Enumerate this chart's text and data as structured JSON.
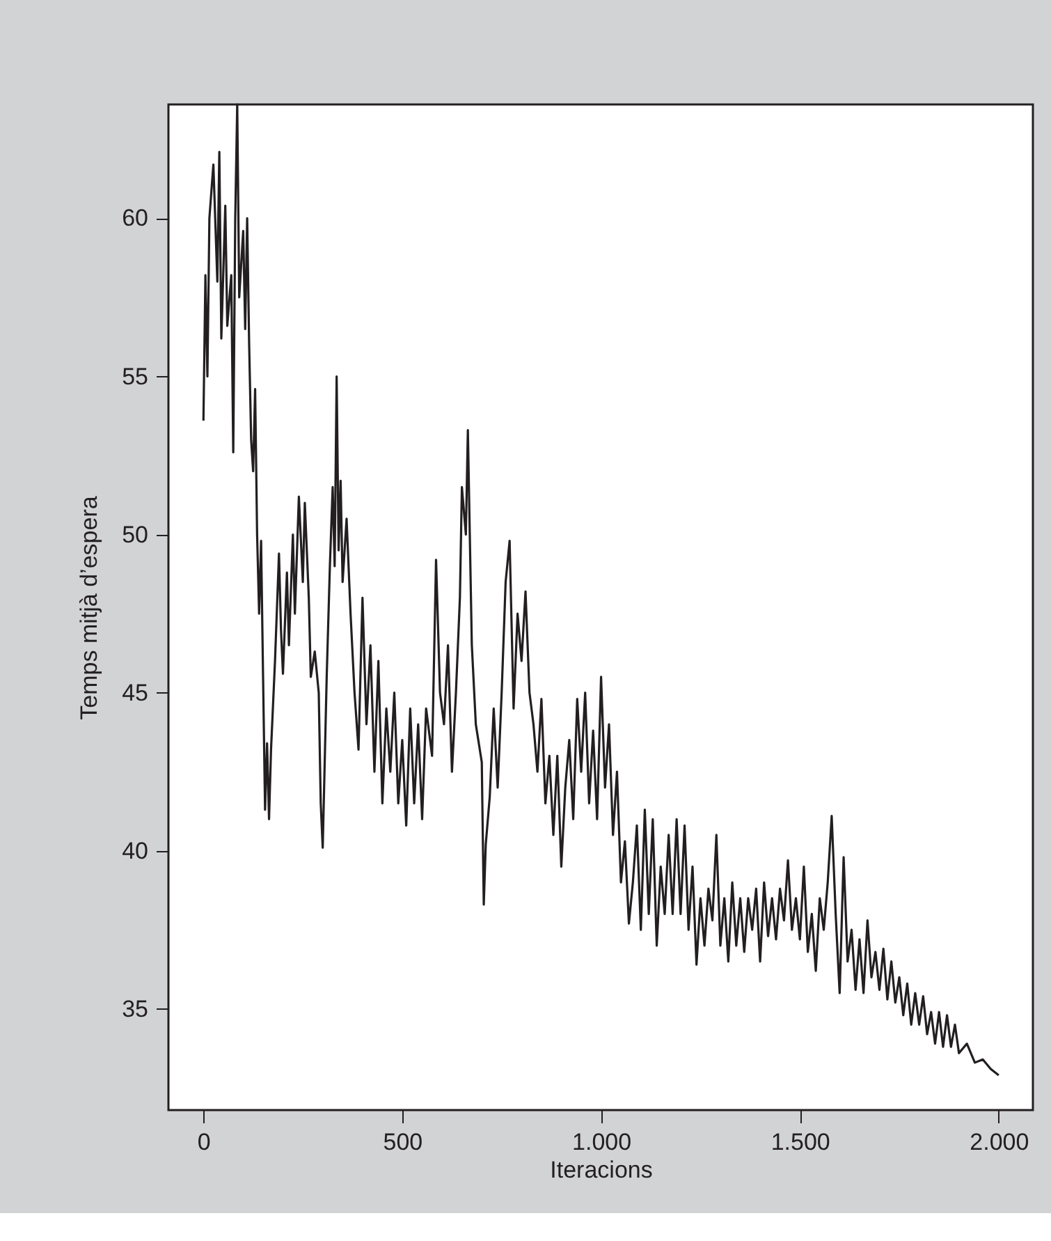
{
  "chart_data": {
    "type": "line",
    "xlabel": "Iteracions",
    "ylabel": "Temps mitjà d’espera",
    "xlim": [
      -88,
      2086
    ],
    "ylim": [
      31.8,
      63.6
    ],
    "xticks": [
      0,
      500,
      {
        "value": 1000,
        "label": "1.000"
      },
      {
        "value": 1500,
        "label": "1.500"
      },
      {
        "value": 2000,
        "label": "2.000"
      }
    ],
    "yticks": [
      35,
      40,
      45,
      50,
      55,
      60
    ],
    "grid": false,
    "marker": "none",
    "line_style": "solid",
    "series": [
      {
        "color": "#231f20",
        "x": [
          0,
          5,
          10,
          15,
          25,
          35,
          40,
          45,
          55,
          60,
          70,
          75,
          80,
          85,
          90,
          100,
          105,
          110,
          115,
          120,
          125,
          130,
          135,
          140,
          145,
          150,
          155,
          160,
          165,
          170,
          180,
          190,
          195,
          200,
          210,
          215,
          225,
          230,
          240,
          250,
          255,
          265,
          270,
          280,
          290,
          295,
          300,
          310,
          318,
          325,
          330,
          335,
          340,
          345,
          350,
          360,
          370,
          380,
          390,
          400,
          410,
          420,
          430,
          440,
          450,
          460,
          470,
          480,
          490,
          500,
          510,
          520,
          530,
          540,
          550,
          560,
          575,
          585,
          595,
          605,
          615,
          625,
          635,
          645,
          650,
          660,
          665,
          675,
          685,
          700,
          705,
          710,
          720,
          730,
          740,
          750,
          760,
          770,
          780,
          790,
          800,
          810,
          820,
          830,
          840,
          850,
          860,
          870,
          880,
          890,
          900,
          910,
          920,
          930,
          940,
          950,
          960,
          970,
          980,
          990,
          1000,
          1010,
          1020,
          1030,
          1040,
          1050,
          1060,
          1070,
          1080,
          1090,
          1100,
          1110,
          1120,
          1130,
          1140,
          1150,
          1160,
          1170,
          1180,
          1190,
          1200,
          1210,
          1220,
          1230,
          1240,
          1250,
          1260,
          1270,
          1280,
          1290,
          1300,
          1310,
          1320,
          1330,
          1340,
          1350,
          1360,
          1370,
          1380,
          1390,
          1400,
          1410,
          1420,
          1430,
          1440,
          1450,
          1460,
          1470,
          1480,
          1490,
          1500,
          1510,
          1520,
          1530,
          1540,
          1550,
          1560,
          1570,
          1580,
          1590,
          1600,
          1610,
          1620,
          1630,
          1640,
          1650,
          1660,
          1670,
          1680,
          1690,
          1700,
          1710,
          1720,
          1730,
          1740,
          1750,
          1760,
          1770,
          1780,
          1790,
          1800,
          1810,
          1820,
          1830,
          1840,
          1850,
          1860,
          1870,
          1880,
          1890,
          1900,
          1920,
          1940,
          1960,
          1980,
          2000
        ],
        "values": [
          53.6,
          58.2,
          55,
          60,
          61.7,
          58,
          62.1,
          56.2,
          60.4,
          56.6,
          58.2,
          52.6,
          60,
          63.6,
          57.5,
          59.6,
          56.5,
          60,
          56,
          53,
          52,
          54.6,
          50,
          47.5,
          49.8,
          45.5,
          41.3,
          43.4,
          41,
          43.2,
          46,
          49.4,
          47,
          45.6,
          48.8,
          46.5,
          50,
          47.5,
          51.2,
          48.5,
          51,
          48,
          45.5,
          46.3,
          45,
          41.5,
          40.1,
          45.5,
          49,
          51.5,
          49,
          55,
          49.5,
          51.7,
          48.5,
          50.5,
          47.5,
          45,
          43.2,
          48,
          44,
          46.5,
          42.5,
          46,
          41.5,
          44.5,
          42.5,
          45,
          41.5,
          43.5,
          40.8,
          44.5,
          41.5,
          44,
          41,
          44.5,
          43,
          49.2,
          45,
          44,
          46.5,
          42.5,
          45,
          48,
          51.5,
          50,
          53.3,
          46.5,
          44,
          42.8,
          38.3,
          40.2,
          41.7,
          44.5,
          42,
          45,
          48.5,
          49.8,
          44.5,
          47.5,
          46,
          48.2,
          45,
          44,
          42.5,
          44.8,
          41.5,
          43,
          40.5,
          43,
          39.5,
          42,
          43.5,
          41,
          44.8,
          42.5,
          45,
          41.5,
          43.8,
          41,
          45.5,
          42,
          44,
          40.5,
          42.5,
          39,
          40.3,
          37.7,
          39,
          40.8,
          37.5,
          41.3,
          38,
          41,
          37,
          39.5,
          38,
          40.5,
          38,
          41,
          38,
          40.8,
          37.5,
          39.5,
          36.4,
          38.5,
          37,
          38.8,
          37.8,
          40.5,
          37,
          38.5,
          36.5,
          39,
          37,
          38.5,
          36.8,
          38.5,
          37.5,
          38.8,
          36.5,
          39,
          37.3,
          38.5,
          37.2,
          38.8,
          37.8,
          39.7,
          37.5,
          38.5,
          37.2,
          39.5,
          36.8,
          38,
          36.2,
          38.5,
          37.5,
          39,
          41.1,
          38,
          35.5,
          39.8,
          36.5,
          37.5,
          35.6,
          37.2,
          35.5,
          37.8,
          36,
          36.8,
          35.6,
          36.9,
          35.3,
          36.5,
          35.2,
          36,
          34.8,
          35.8,
          34.5,
          35.5,
          34.5,
          35.4,
          34.2,
          34.9,
          33.9,
          34.9,
          33.8,
          34.8,
          33.8,
          34.5,
          33.6,
          33.9,
          33.3,
          33.4,
          33.1,
          32.9
        ]
      }
    ]
  }
}
